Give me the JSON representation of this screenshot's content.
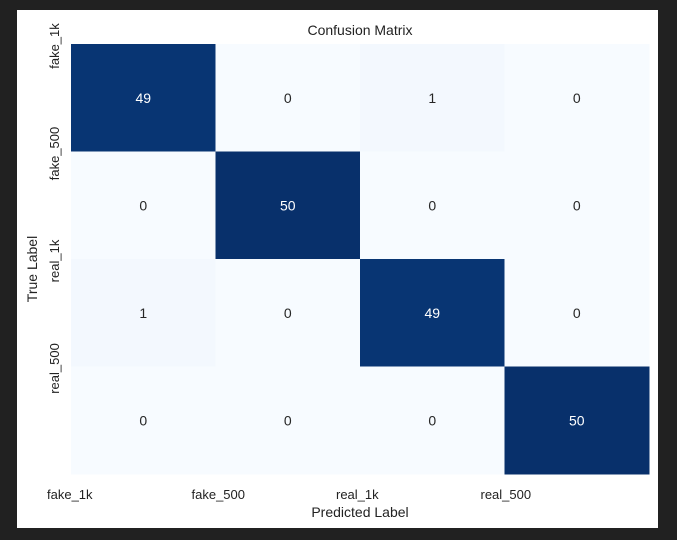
{
  "chart_data": {
    "type": "heatmap",
    "title": "Confusion Matrix",
    "xlabel": "Predicted Label",
    "ylabel": "True Label",
    "x_categories": [
      "fake_1k",
      "fake_500",
      "real_1k",
      "real_500"
    ],
    "y_categories": [
      "fake_1k",
      "fake_500",
      "real_1k",
      "real_500"
    ],
    "matrix": [
      [
        49,
        0,
        1,
        0
      ],
      [
        0,
        50,
        0,
        0
      ],
      [
        1,
        0,
        49,
        0
      ],
      [
        0,
        0,
        0,
        50
      ]
    ],
    "value_range": [
      0,
      50
    ],
    "colormap": "Blues",
    "colorbar": false,
    "colors": {
      "low": "#f7fbff",
      "high": "#08306b",
      "text_dark": "#262626",
      "text_light": "#ffffff"
    }
  }
}
